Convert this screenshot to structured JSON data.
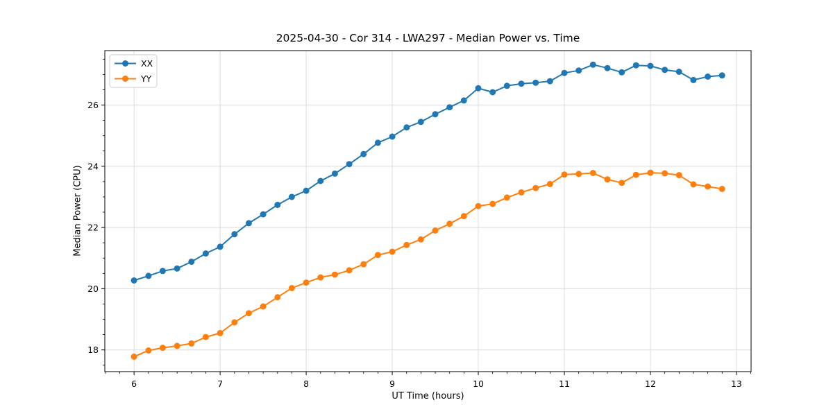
{
  "chart_data": {
    "type": "line",
    "title": "2025-04-30 - Cor 314 - LWA297 - Median Power vs. Time",
    "xlabel": "UT Time (hours)",
    "ylabel": "Median Power (CPU)",
    "xlim": [
      5.66,
      13.17
    ],
    "ylim": [
      17.29,
      27.78
    ],
    "xticks": [
      6,
      7,
      8,
      9,
      10,
      11,
      12,
      13
    ],
    "yticks": [
      18,
      20,
      22,
      24,
      26
    ],
    "x_minor_step": 0.16667,
    "y_minor_step": 0.5,
    "grid": true,
    "grid_color": "#dcdcdc",
    "legend_position": "upper left",
    "x": [
      6.0,
      6.167,
      6.333,
      6.5,
      6.667,
      6.833,
      7.0,
      7.167,
      7.333,
      7.5,
      7.667,
      7.833,
      8.0,
      8.167,
      8.333,
      8.5,
      8.667,
      8.833,
      9.0,
      9.167,
      9.333,
      9.5,
      9.667,
      9.833,
      10.0,
      10.167,
      10.333,
      10.5,
      10.667,
      10.833,
      11.0,
      11.167,
      11.333,
      11.5,
      11.667,
      11.833,
      12.0,
      12.167,
      12.333,
      12.5,
      12.667,
      12.833
    ],
    "series": [
      {
        "name": "XX",
        "color": "#1f77b4",
        "values": [
          20.27,
          20.42,
          20.58,
          20.66,
          20.88,
          21.15,
          21.37,
          21.78,
          22.14,
          22.43,
          22.74,
          23.0,
          23.2,
          23.52,
          23.76,
          24.07,
          24.4,
          24.77,
          24.97,
          25.27,
          25.45,
          25.7,
          25.93,
          26.15,
          26.55,
          26.42,
          26.63,
          26.7,
          26.73,
          26.78,
          27.05,
          27.13,
          27.32,
          27.21,
          27.07,
          27.3,
          27.28,
          27.15,
          27.09,
          26.82,
          26.93,
          26.97
        ]
      },
      {
        "name": "YY",
        "color": "#ff7f0e",
        "values": [
          17.78,
          17.98,
          18.07,
          18.13,
          18.21,
          18.42,
          18.55,
          18.9,
          19.2,
          19.42,
          19.72,
          20.02,
          20.2,
          20.37,
          20.46,
          20.6,
          20.8,
          21.1,
          21.21,
          21.43,
          21.61,
          21.9,
          22.12,
          22.37,
          22.7,
          22.77,
          22.98,
          23.15,
          23.29,
          23.42,
          23.73,
          23.75,
          23.78,
          23.57,
          23.46,
          23.72,
          23.79,
          23.77,
          23.71,
          23.41,
          23.34,
          23.26
        ]
      }
    ]
  }
}
